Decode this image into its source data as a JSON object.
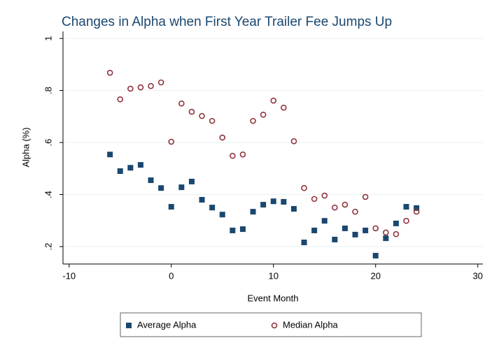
{
  "chart_data": {
    "type": "scatter",
    "title": "Changes in Alpha when First Year Trailer Fee Jumps Up",
    "xlabel": "Event  Month",
    "ylabel": "Alpha (%)",
    "x": [
      -6,
      -5,
      -4,
      -3,
      -2,
      -1,
      0,
      1,
      2,
      3,
      4,
      5,
      6,
      7,
      8,
      9,
      10,
      11,
      12,
      13,
      14,
      15,
      16,
      17,
      18,
      19,
      20,
      21,
      22,
      23,
      24
    ],
    "series": [
      {
        "name": "Average Alpha",
        "color": "#1a476f",
        "marker": "square",
        "values": [
          0.554,
          0.49,
          0.503,
          0.514,
          0.455,
          0.425,
          0.353,
          0.428,
          0.45,
          0.38,
          0.35,
          0.323,
          0.262,
          0.267,
          0.334,
          0.361,
          0.374,
          0.372,
          0.345,
          0.216,
          0.262,
          0.299,
          0.227,
          0.27,
          0.246,
          0.262,
          0.165,
          0.232,
          0.289,
          0.353,
          0.348
        ]
      },
      {
        "name": "Median Alpha",
        "color": "#90353b",
        "marker": "hollow-circle",
        "values": [
          0.868,
          0.766,
          0.807,
          0.812,
          0.817,
          0.831,
          0.603,
          0.75,
          0.718,
          0.702,
          0.683,
          0.619,
          0.549,
          0.554,
          0.683,
          0.707,
          0.761,
          0.734,
          0.605,
          0.425,
          0.383,
          0.396,
          0.35,
          0.361,
          0.334,
          0.391,
          0.27,
          0.254,
          0.248,
          0.299,
          0.334
        ]
      }
    ],
    "xlim": [
      -10.6,
      30.5
    ],
    "xticks": [
      -10,
      0,
      10,
      20,
      30
    ],
    "ylim": [
      0.133,
      1.027
    ],
    "yticks": [
      {
        "value": 0.2,
        "label": ".2"
      },
      {
        "value": 0.4,
        "label": ".4"
      },
      {
        "value": 0.6,
        "label": ".6"
      },
      {
        "value": 0.8,
        "label": ".8"
      },
      1
    ],
    "grid": true,
    "legend": "bottom"
  }
}
